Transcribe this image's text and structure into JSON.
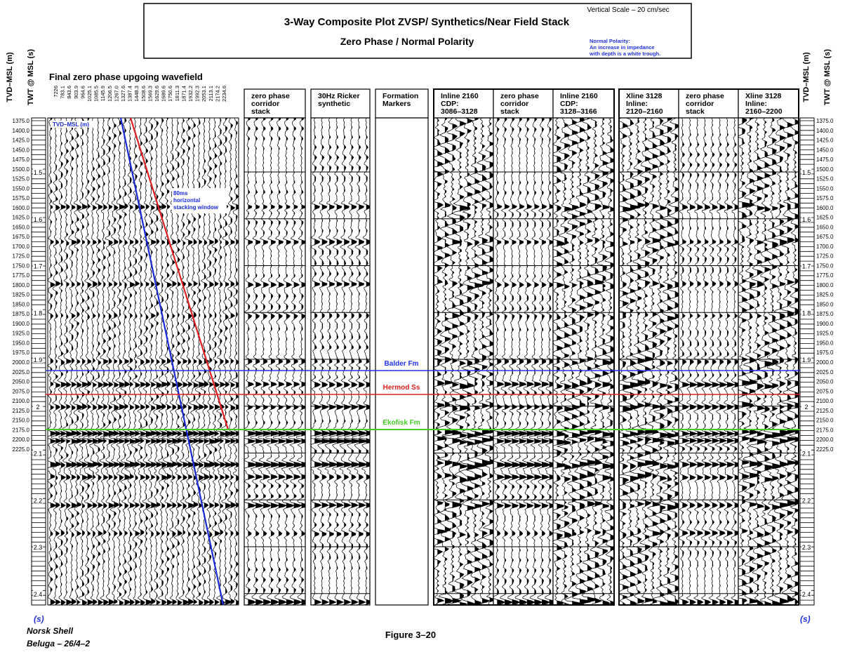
{
  "header": {
    "title": "3-Way Composite Plot ZVSP/ Synthetics/Near Field Stack",
    "subtitle": "Zero Phase  /  Normal Polarity",
    "scale_note": "Vertical Scale – 20 cm/sec",
    "polarity_note": [
      "Normal Polarity:",
      "An increase in impedance",
      "with depth is a white trough."
    ]
  },
  "axes": {
    "tvd_label": "TVD–MSL (m)",
    "twt_label": "TWT @ MSL (s)",
    "tvd_ticks": [
      "1375.0",
      "1400.0",
      "1425.0",
      "1450.0",
      "1475.0",
      "1500.0",
      "1525.0",
      "1550.0",
      "1575.0",
      "1600.0",
      "1625.0",
      "1650.0",
      "1675.0",
      "1700.0",
      "1725.0",
      "1750.0",
      "1775.0",
      "1800.0",
      "1825.0",
      "1850.0",
      "1875.0",
      "1900.0",
      "1925.0",
      "1950.0",
      "1975.0",
      "2000.0",
      "2025.0",
      "2050.0",
      "2075.0",
      "2100.0",
      "2125.0",
      "2150.0",
      "2175.0",
      "2200.0",
      "2225.0"
    ],
    "twt_ticks": [
      "1.5",
      "1.6",
      "1.7",
      "1.8",
      "1.9",
      "2",
      "2.1",
      "2.2",
      "2.3",
      "2.4"
    ],
    "unit": "(s)"
  },
  "zvsp": {
    "title": "Final zero phase upgoing wavefield",
    "offsets": [
      "7226",
      "783.1",
      "843.6",
      "903.9",
      "964.6",
      "1025.1",
      "1085.5",
      "1145.9",
      "1206.5",
      "1267.0",
      "1327.6",
      "1387.4",
      "1448.3",
      "1508.6",
      "1569.3",
      "1629.6",
      "1689.6",
      "1750.6",
      "1811.3",
      "1871.4",
      "1932.2",
      "1992.3",
      "2053.1",
      "2113.1",
      "2174.2",
      "2234.6"
    ],
    "tvd_curve_label": "TVD–MSL (m)",
    "window_label": [
      "80ms",
      "horizontal",
      "stacking window"
    ]
  },
  "panels": [
    {
      "header": [
        "zero phase",
        "corridor",
        "stack"
      ]
    },
    {
      "header": [
        "30Hz Ricker",
        "synthetic"
      ]
    },
    {
      "header": [
        "Formation",
        "Markers"
      ]
    },
    {
      "header": [
        "Inline 2160",
        "CDP:",
        "3086–3128"
      ]
    },
    {
      "header": [
        "zero phase",
        "corridor",
        "stack"
      ]
    },
    {
      "header": [
        "Inline 2160",
        "CDP:",
        "3128–3166"
      ]
    },
    {
      "header": [
        "Xline 3128",
        "Inline:",
        "2120–2160"
      ]
    },
    {
      "header": [
        "zero phase",
        "corridor",
        "stack"
      ]
    },
    {
      "header": [
        "Xline 3128",
        "Inline:",
        "2160–2200"
      ]
    }
  ],
  "markers": [
    {
      "name": "Balder Fm",
      "color": "#2233dd"
    },
    {
      "name": "Hermod Ss",
      "color": "#e02020"
    },
    {
      "name": "Ekofisk Fm",
      "color": "#44cc22"
    }
  ],
  "footer": {
    "company": "Norsk Shell",
    "well": "Beluga – 26/4–2",
    "figure": "Figure 3–20"
  }
}
